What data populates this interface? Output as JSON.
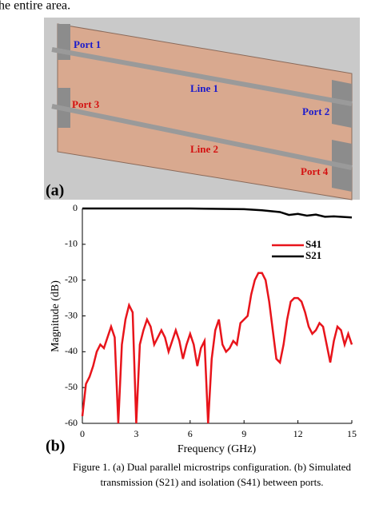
{
  "header": {
    "text": "he entire area."
  },
  "panel_a": {
    "label": "(a)",
    "ports": [
      "Port 1",
      "Port 2",
      "Port 3",
      "Port 4"
    ],
    "lines": [
      "Line 1",
      "Line 2"
    ]
  },
  "chart_data": {
    "type": "line",
    "label": "(b)",
    "xlabel": "Frequency (GHz)",
    "ylabel": "Magnitude (dB)",
    "xlim": [
      0,
      15
    ],
    "xticks": [
      0,
      3,
      6,
      9,
      12,
      15
    ],
    "ylim": [
      -60,
      0
    ],
    "yticks": [
      0,
      -10,
      -20,
      -30,
      -40,
      -50,
      -60
    ],
    "legend": "upper right",
    "series": [
      {
        "name": "S41",
        "color": "#e8141b",
        "x": [
          0,
          0.2,
          0.4,
          0.6,
          0.8,
          1.0,
          1.2,
          1.4,
          1.6,
          1.8,
          2.0,
          2.2,
          2.4,
          2.6,
          2.8,
          3.0,
          3.2,
          3.4,
          3.6,
          3.8,
          4.0,
          4.2,
          4.4,
          4.6,
          4.8,
          5.0,
          5.2,
          5.4,
          5.6,
          5.8,
          6.0,
          6.2,
          6.4,
          6.6,
          6.8,
          7.0,
          7.2,
          7.4,
          7.6,
          7.8,
          8.0,
          8.2,
          8.4,
          8.6,
          8.8,
          9.0,
          9.2,
          9.4,
          9.6,
          9.8,
          10.0,
          10.2,
          10.4,
          10.6,
          10.8,
          11.0,
          11.2,
          11.4,
          11.6,
          11.8,
          12.0,
          12.2,
          12.4,
          12.6,
          12.8,
          13.0,
          13.2,
          13.4,
          13.6,
          13.8,
          14.0,
          14.2,
          14.4,
          14.6,
          14.8,
          15.0
        ],
        "values": [
          -58,
          -49,
          -47,
          -44,
          -40,
          -38,
          -39,
          -36,
          -33,
          -36,
          -60,
          -38,
          -31,
          -27,
          -29,
          -60,
          -38,
          -34,
          -31,
          -33,
          -38,
          -36,
          -34,
          -36,
          -40,
          -37,
          -34,
          -37,
          -42,
          -38,
          -35,
          -38,
          -44,
          -39,
          -37,
          -60,
          -42,
          -34,
          -31,
          -38,
          -40,
          -39,
          -37,
          -38,
          -32,
          -31,
          -30,
          -24,
          -20,
          -18,
          -18,
          -20,
          -26,
          -34,
          -42,
          -43,
          -38,
          -31,
          -26,
          -25,
          -25,
          -26,
          -29,
          -33,
          -35,
          -34,
          -32,
          -33,
          -38,
          -43,
          -37,
          -33,
          -34,
          -38,
          -35,
          -38
        ]
      },
      {
        "name": "S21",
        "color": "#000000",
        "x": [
          0,
          3,
          6,
          9,
          10,
          11,
          11.5,
          12,
          12.5,
          13,
          13.5,
          14,
          15
        ],
        "values": [
          0,
          0,
          0,
          -0.2,
          -0.5,
          -1,
          -1.8,
          -1.5,
          -2,
          -1.7,
          -2.3,
          -2.2,
          -2.5
        ]
      }
    ]
  },
  "caption": {
    "line1": "Figure 1. (a) Dual parallel microstrips configuration. (b) Simulated",
    "line2": "transmission (S21) and isolation (S41) between ports."
  }
}
